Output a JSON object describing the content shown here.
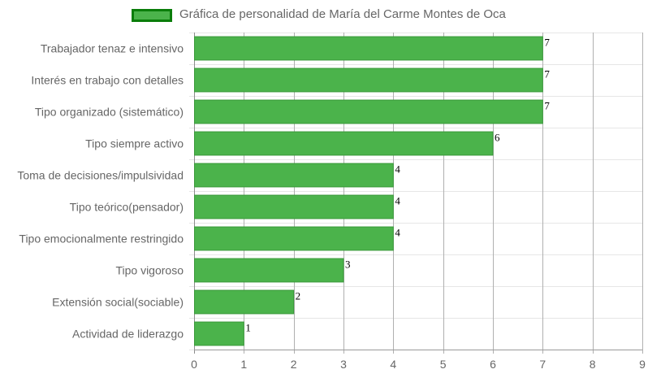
{
  "chart_data": {
    "type": "bar",
    "orientation": "horizontal",
    "categories": [
      "Trabajador tenaz e intensivo",
      "Interés en trabajo con detalles",
      "Tipo organizado (sistemático)",
      "Tipo siempre activo",
      "Toma de decisiones/impulsividad",
      "Tipo teórico(pensador)",
      "Tipo emocionalmente restringido",
      "Tipo vigoroso",
      "Extensión social(sociable)",
      "Actividad de liderazgo"
    ],
    "series": [
      {
        "name": "Gráfica de personalidad de María del Carme Montes de Oca",
        "values": [
          7,
          7,
          7,
          6,
          4,
          4,
          4,
          3,
          2,
          1
        ]
      }
    ],
    "xlim": [
      0,
      9
    ],
    "xticks": [
      0,
      1,
      2,
      3,
      4,
      5,
      6,
      7,
      8,
      9
    ],
    "grid": true,
    "legend_position": "top",
    "data_labels": true,
    "colors": {
      "bar": "#4bb34b",
      "bar_border": "#3a9a3a",
      "legend_border": "#0a7d0a"
    }
  }
}
